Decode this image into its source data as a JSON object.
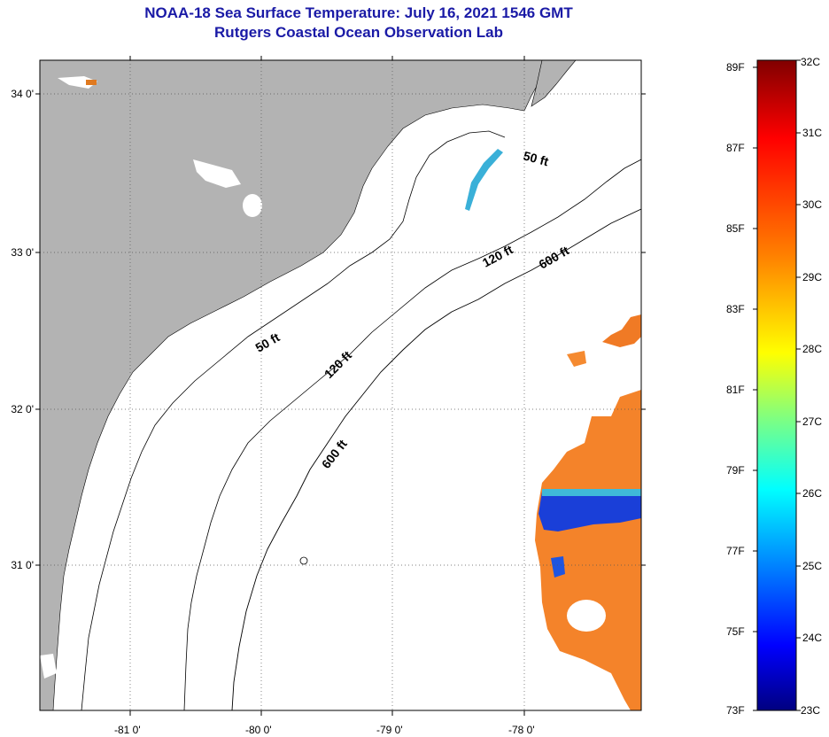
{
  "header": {
    "title": "NOAA-18 Sea Surface Temperature:  July 16, 2021 1546 GMT",
    "subtitle": "Rutgers Coastal Ocean Observation Lab"
  },
  "axes": {
    "lat_labels": [
      "34 0'",
      "33 0'",
      "32 0'",
      "31 0'"
    ],
    "lon_labels": [
      "-81 0'",
      "-80 0'",
      "-79 0'",
      "-78 0'"
    ]
  },
  "contours": {
    "labels": [
      "50 ft",
      "120 ft",
      "600 ft",
      "50 ft",
      "120 ft",
      "600 ft"
    ]
  },
  "colorbar": {
    "fahrenheit": [
      "89F",
      "87F",
      "85F",
      "83F",
      "81F",
      "79F",
      "77F",
      "75F",
      "73F"
    ],
    "celsius": [
      "32C",
      "31C",
      "30C",
      "29C",
      "28C",
      "27C",
      "26C",
      "25C",
      "24C",
      "23C"
    ],
    "colors": [
      "#800000",
      "#ff0000",
      "#ff8000",
      "#ffff00",
      "#80ff80",
      "#00ffff",
      "#0080ff",
      "#0000ff",
      "#000080"
    ]
  },
  "map_colors": {
    "land": "#b3b3b3",
    "sst_warm": "#f4832a",
    "sst_cool": "#1a3fd8"
  }
}
